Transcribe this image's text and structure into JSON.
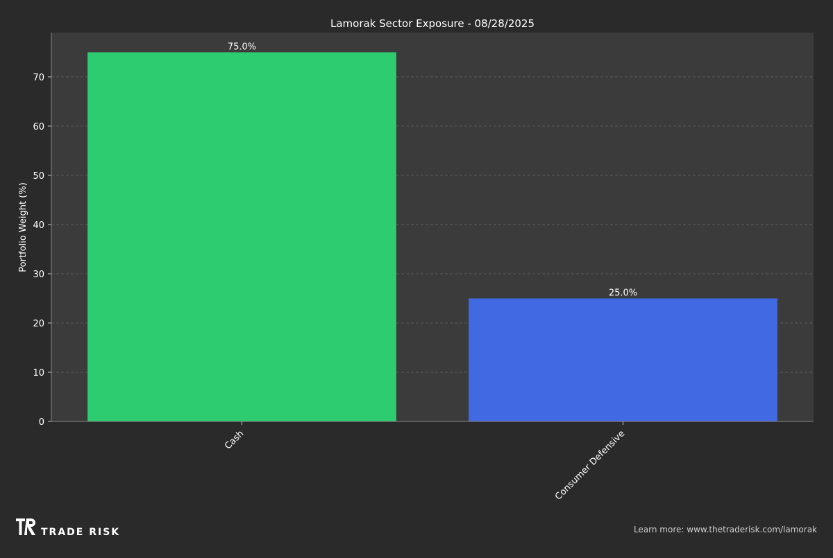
{
  "chart_data": {
    "type": "bar",
    "title": "Lamorak Sector Exposure - 08/28/2025",
    "xlabel": "",
    "ylabel": "Portfolio Weight (%)",
    "categories": [
      "Cash",
      "Consumer Defensive"
    ],
    "values": [
      75.0,
      25.0
    ],
    "data_labels": [
      "75.0%",
      "25.0%"
    ],
    "colors": [
      "#2ecc71",
      "#4169e1"
    ],
    "ylim": [
      0,
      79
    ],
    "yticks": [
      0,
      10,
      20,
      30,
      40,
      50,
      60,
      70
    ],
    "grid": true
  },
  "footer": {
    "brand_logo_text": "TR",
    "brand_name": "TRADE RISK",
    "learn_more": "Learn more: www.thetraderisk.com/lamorak"
  },
  "colors": {
    "background": "#2a2a2a",
    "plot_background": "#3b3b3b",
    "grid": "#5a5a5a",
    "text": "#ffffff"
  }
}
